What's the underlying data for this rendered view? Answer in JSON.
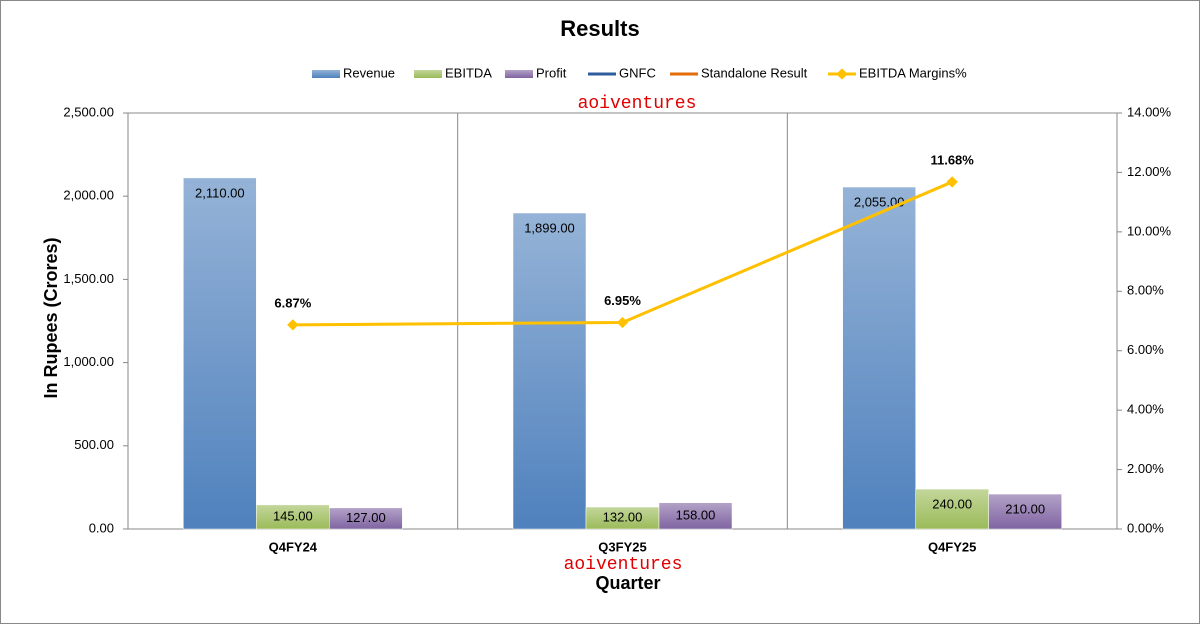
{
  "chart_data": {
    "type": "bar",
    "title": "Results",
    "x_label": "Quarter",
    "y_label": "In Rupees (Crores)",
    "annotations": [
      "aoiventures",
      "aoiventures"
    ],
    "categories": [
      "Q4FY24",
      "Q3FY25",
      "Q4FY25"
    ],
    "series": [
      {
        "name": "Revenue",
        "color": "#4f81bd",
        "type": "bar",
        "values": [
          2110,
          1899,
          2055
        ],
        "value_labels": [
          "2,110.00",
          "1,899.00",
          "2,055.00"
        ]
      },
      {
        "name": "EBITDA",
        "color": "#9bbb59",
        "type": "bar",
        "values": [
          145,
          132,
          240
        ],
        "value_labels": [
          "145.00",
          "132.00",
          "240.00"
        ]
      },
      {
        "name": "Profit",
        "color": "#8064a2",
        "type": "bar",
        "values": [
          127,
          158,
          210
        ],
        "value_labels": [
          "127.00",
          "158.00",
          "210.00"
        ]
      },
      {
        "name": "GNFC",
        "color": "#2e5c9e",
        "type": "line",
        "values": [
          null,
          null,
          null
        ]
      },
      {
        "name": "Standalone Result",
        "color": "#e46c0a",
        "type": "line",
        "values": [
          null,
          null,
          null
        ]
      },
      {
        "name": "EBITDA Margins%",
        "color": "#ffc000",
        "type": "line",
        "axis": "y2",
        "values": [
          6.87,
          6.95,
          11.68
        ],
        "value_labels": [
          "6.87%",
          "6.95%",
          "11.68%"
        ]
      }
    ],
    "ylim": [
      0,
      2500
    ],
    "yticks": [
      {
        "value": 0,
        "label": "0.00"
      },
      {
        "value": 500,
        "label": "500.00"
      },
      {
        "value": 1000,
        "label": "1,000.00"
      },
      {
        "value": 1500,
        "label": "1,500.00"
      },
      {
        "value": 2000,
        "label": "2,000.00"
      },
      {
        "value": 2500,
        "label": "2,500.00"
      }
    ],
    "y2lim": [
      0,
      14
    ],
    "y2ticks": [
      {
        "value": 0,
        "label": "0.00%"
      },
      {
        "value": 2,
        "label": "2.00%"
      },
      {
        "value": 4,
        "label": "4.00%"
      },
      {
        "value": 6,
        "label": "6.00%"
      },
      {
        "value": 8,
        "label": "8.00%"
      },
      {
        "value": 10,
        "label": "10.00%"
      },
      {
        "value": 12,
        "label": "12.00%"
      },
      {
        "value": 14,
        "label": "14.00%"
      }
    ],
    "legend": "top"
  }
}
